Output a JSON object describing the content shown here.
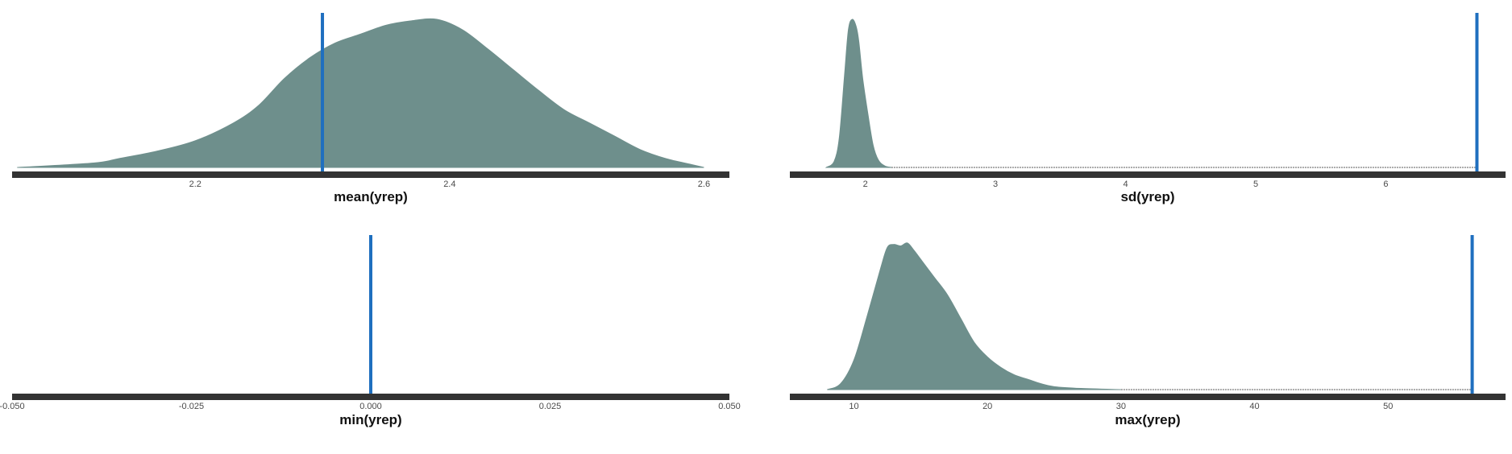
{
  "colors": {
    "density_fill": "#6e8f8c",
    "density_stroke": "#6e8f8c",
    "observed_line": "#1f6fbf",
    "axis_line": "#333333",
    "tail_line": "#555555"
  },
  "chart_data": [
    {
      "type": "area",
      "xlabel": "mean(yrep)",
      "xlim": [
        2.056,
        2.62
      ],
      "ticks": [
        2.2,
        2.4,
        2.6
      ],
      "tick_labels": [
        "2.2",
        "2.4",
        "2.6"
      ],
      "observed": 2.3,
      "x": [
        2.06,
        2.12,
        2.14,
        2.17,
        2.2,
        2.23,
        2.25,
        2.27,
        2.29,
        2.31,
        2.33,
        2.35,
        2.37,
        2.39,
        2.41,
        2.43,
        2.45,
        2.47,
        2.49,
        2.51,
        2.53,
        2.55,
        2.57,
        2.59,
        2.6
      ],
      "y": [
        0.0,
        0.03,
        0.06,
        0.11,
        0.18,
        0.3,
        0.42,
        0.6,
        0.74,
        0.84,
        0.9,
        0.96,
        0.99,
        1.0,
        0.93,
        0.8,
        0.66,
        0.52,
        0.39,
        0.3,
        0.21,
        0.12,
        0.06,
        0.02,
        0.0
      ]
    },
    {
      "type": "area",
      "xlabel": "sd(yrep)",
      "xlim": [
        1.42,
        6.92
      ],
      "ticks": [
        2,
        3,
        4,
        5,
        6
      ],
      "tick_labels": [
        "2",
        "3",
        "4",
        "5",
        "6"
      ],
      "observed": 6.7,
      "tail_end": 6.7,
      "x": [
        1.7,
        1.76,
        1.8,
        1.84,
        1.87,
        1.9,
        1.93,
        1.95,
        1.98,
        2.02,
        2.06,
        2.1,
        2.15,
        2.2
      ],
      "y": [
        0.0,
        0.04,
        0.2,
        0.62,
        0.93,
        1.0,
        0.95,
        0.85,
        0.6,
        0.36,
        0.15,
        0.05,
        0.01,
        0.0
      ]
    },
    {
      "type": "area",
      "xlabel": "min(yrep)",
      "xlim": [
        -0.05,
        0.05
      ],
      "ticks": [
        -0.05,
        -0.025,
        0.0,
        0.025,
        0.05
      ],
      "tick_labels": [
        "-0.050",
        "-0.025",
        "0.000",
        "0.025",
        "0.050"
      ],
      "observed": 0.0,
      "x": [],
      "y": []
    },
    {
      "type": "area",
      "xlabel": "max(yrep)",
      "xlim": [
        5.2,
        58.8
      ],
      "ticks": [
        10,
        20,
        30,
        40,
        50
      ],
      "tick_labels": [
        "10",
        "20",
        "30",
        "40",
        "50"
      ],
      "observed": 56.3,
      "tail_end": 56.3,
      "x": [
        8,
        9,
        10,
        11,
        12,
        12.5,
        13,
        13.5,
        14,
        14.5,
        15,
        16,
        17,
        18,
        19,
        20,
        21,
        22,
        23,
        24,
        25,
        27,
        30
      ],
      "y": [
        0.0,
        0.04,
        0.2,
        0.5,
        0.82,
        0.96,
        0.98,
        0.97,
        0.99,
        0.94,
        0.88,
        0.76,
        0.64,
        0.48,
        0.32,
        0.22,
        0.15,
        0.1,
        0.07,
        0.04,
        0.02,
        0.008,
        0.0
      ]
    }
  ]
}
